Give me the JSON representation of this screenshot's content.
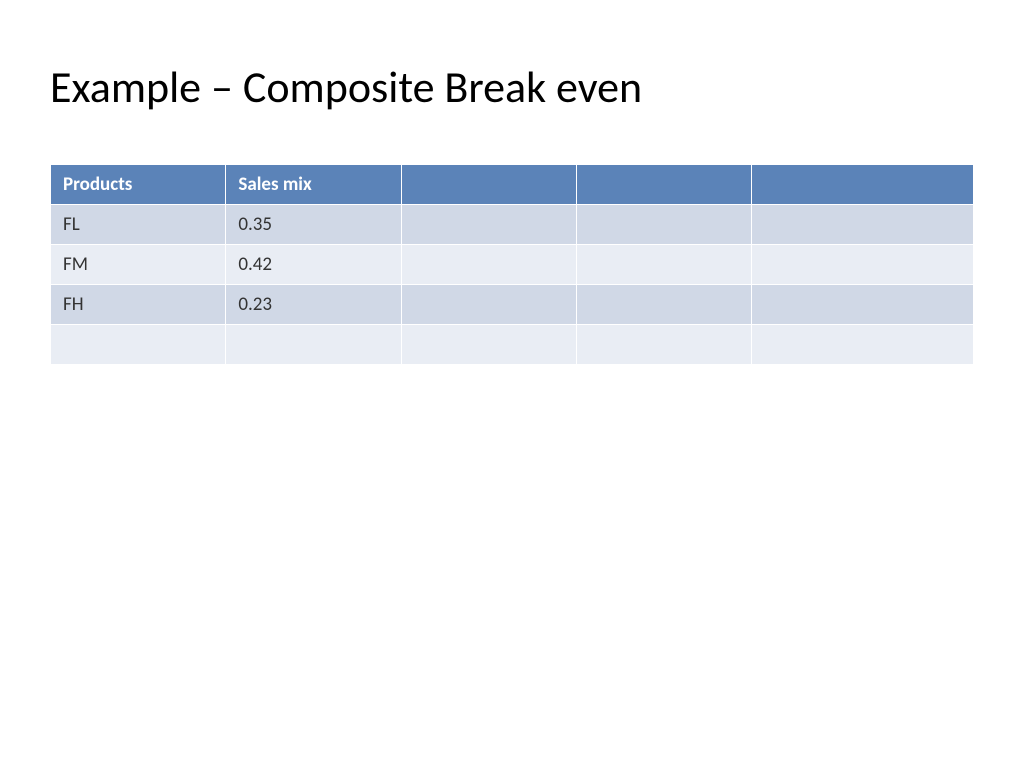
{
  "title": "Example – Composite Break even",
  "table": {
    "type": "table",
    "header_bg_color": "#5b83b8",
    "header_text_color": "#ffffff",
    "row_odd_bg_color": "#d0d8e6",
    "row_even_bg_color": "#e9edf4",
    "cell_text_color": "#333333",
    "border_color": "#ffffff",
    "header_fontsize": 19,
    "cell_fontsize": 19,
    "columns": [
      {
        "label": "Products",
        "width": "19%"
      },
      {
        "label": "Sales mix",
        "width": "19%"
      },
      {
        "label": "",
        "width": "19%"
      },
      {
        "label": "",
        "width": "19%"
      },
      {
        "label": "",
        "width": "24%"
      }
    ],
    "rows": [
      [
        "FL",
        "0.35",
        "",
        "",
        ""
      ],
      [
        "FM",
        "0.42",
        "",
        "",
        ""
      ],
      [
        "FH",
        "0.23",
        "",
        "",
        ""
      ],
      [
        "",
        "",
        "",
        "",
        ""
      ]
    ]
  }
}
